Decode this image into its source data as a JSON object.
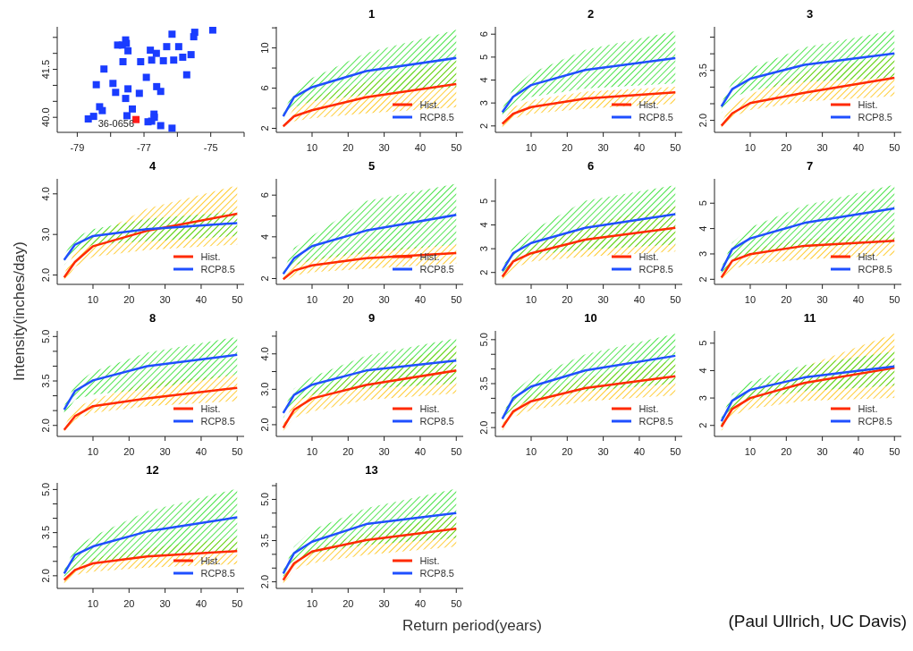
{
  "chart_data": [
    {
      "type": "scatter",
      "marker": "square",
      "xlim": [
        -79.6,
        -74.0
      ],
      "ylim": [
        39.53,
        42.83
      ],
      "xticks": [
        -79,
        {
          "value": -78,
          "label": null
        },
        -77,
        {
          "value": -76,
          "label": null
        },
        -75,
        {
          "value": -74,
          "label": null
        }
      ],
      "yticks": [
        {
          "value": 40,
          "label": "40.0"
        },
        {
          "value": 40.5,
          "label": null
        },
        {
          "value": 41,
          "label": null
        },
        41.5,
        {
          "value": 42,
          "label": null
        },
        {
          "value": 42.5,
          "label": null
        }
      ],
      "series": [
        {
          "color": "#1a3cff",
          "x": [
            -74.94,
            -75.48,
            -75.51,
            -76.16,
            -76.32,
            -75.96,
            -76.81,
            -76.63,
            -77.79,
            -77.65,
            -77.55,
            -77.53,
            -77.48,
            -75.84,
            -75.59,
            -76.11,
            -76.42,
            -76.77,
            -77.1,
            -77.63,
            -78.2,
            -75.72,
            -76.93,
            -78.43,
            -77.93,
            -77.85,
            -77.48,
            -77.55,
            -77.14,
            -76.62,
            -76.5,
            -78.33,
            -78.25,
            -77.35,
            -77.51,
            -76.7,
            -76.69,
            -76.77,
            -76.88,
            -76.5,
            -76.16,
            -78.67,
            -78.51
          ],
          "values": [
            42.73,
            42.66,
            42.52,
            42.6,
            42.21,
            42.21,
            42.1,
            42.0,
            42.26,
            42.26,
            42.42,
            42.31,
            42.08,
            41.88,
            41.96,
            41.79,
            41.77,
            41.79,
            41.74,
            41.74,
            41.51,
            41.33,
            41.25,
            41.02,
            41.06,
            40.78,
            40.89,
            40.59,
            40.75,
            40.96,
            40.81,
            40.33,
            40.21,
            40.26,
            40.05,
            40.1,
            40.0,
            39.88,
            39.86,
            39.74,
            39.66,
            39.95,
            40.03
          ]
        },
        {
          "color": "#ff1a1a",
          "x": [
            -77.24
          ],
          "values": [
            39.93
          ]
        }
      ],
      "annotations": [
        {
          "text": "36-0656",
          "x": -77.24,
          "y": 39.93
        }
      ]
    },
    {
      "type": "line",
      "title": "1",
      "x": [
        2,
        5,
        10,
        25,
        50
      ],
      "xlim": [
        0.08,
        51.92
      ],
      "xticks": [
        10,
        20,
        30,
        40,
        50
      ],
      "ylim": [
        1.6,
        12.1
      ],
      "yticks": [
        2,
        {
          "value": 4,
          "label": null
        },
        6,
        {
          "value": 8,
          "label": null
        },
        10,
        {
          "value": 12,
          "label": null
        }
      ],
      "legend": "bottom right",
      "series": [
        {
          "name": "Hist.",
          "color": "#ff2a00",
          "values": [
            2.2,
            3.2,
            3.8,
            5.1,
            6.4
          ],
          "lower": [
            2.0,
            2.7,
            3.0,
            3.5,
            4.1
          ],
          "upper": [
            2.4,
            4.0,
            5.1,
            6.6,
            8.7
          ]
        },
        {
          "name": "RCP8.5",
          "color": "#1f4fff",
          "values": [
            3.2,
            5.1,
            6.1,
            7.7,
            9.0
          ],
          "lower": [
            2.9,
            4.1,
            4.7,
            5.35,
            6.1
          ],
          "upper": [
            3.7,
            5.6,
            7.0,
            9.5,
            11.8
          ]
        }
      ]
    },
    {
      "type": "line",
      "title": "2",
      "x": [
        2,
        5,
        10,
        25,
        50
      ],
      "xlim": [
        0.08,
        51.92
      ],
      "xticks": [
        10,
        20,
        30,
        40,
        50
      ],
      "ylim": [
        1.72,
        6.32
      ],
      "yticks": [
        2,
        3,
        4,
        5,
        6
      ],
      "legend": "bottom right",
      "series": [
        {
          "name": "Hist.",
          "color": "#ff2a00",
          "values": [
            2.09,
            2.53,
            2.82,
            3.19,
            3.46
          ],
          "lower": [
            1.94,
            2.31,
            2.53,
            2.75,
            2.97
          ],
          "upper": [
            2.16,
            2.82,
            3.12,
            3.49,
            3.71
          ]
        },
        {
          "name": "RCP8.5",
          "color": "#1f4fff",
          "values": [
            2.6,
            3.27,
            3.78,
            4.44,
            4.96
          ],
          "lower": [
            2.38,
            2.97,
            3.26,
            3.63,
            3.85
          ],
          "upper": [
            2.75,
            3.63,
            4.3,
            5.32,
            6.13
          ]
        }
      ]
    },
    {
      "type": "line",
      "title": "3",
      "x": [
        2,
        5,
        10,
        25,
        50
      ],
      "xlim": [
        0.08,
        51.92
      ],
      "xticks": [
        10,
        20,
        30,
        40,
        50
      ],
      "ylim": [
        1.64,
        4.81
      ],
      "yticks": [
        {
          "value": 2,
          "label": "2.0"
        },
        {
          "value": 2.5,
          "label": null
        },
        {
          "value": 3,
          "label": null
        },
        3.5,
        {
          "value": 4,
          "label": null
        },
        {
          "value": 4.5,
          "label": null
        }
      ],
      "legend": "bottom right",
      "series": [
        {
          "name": "Hist.",
          "color": "#ff2a00",
          "values": [
            1.84,
            2.21,
            2.52,
            2.83,
            3.28
          ],
          "lower": [
            1.74,
            2.1,
            2.31,
            2.57,
            2.73
          ],
          "upper": [
            1.95,
            2.47,
            2.78,
            3.46,
            3.93
          ]
        },
        {
          "name": "RCP8.5",
          "color": "#1f4fff",
          "values": [
            2.42,
            2.94,
            3.25,
            3.67,
            4.01
          ],
          "lower": [
            2.21,
            2.68,
            2.89,
            3.15,
            3.29
          ],
          "upper": [
            2.52,
            3.15,
            3.56,
            4.19,
            4.71
          ]
        }
      ]
    },
    {
      "type": "line",
      "title": "4",
      "x": [
        2,
        5,
        10,
        25,
        50
      ],
      "xlim": [
        0.08,
        51.92
      ],
      "xticks": [
        10,
        20,
        30,
        40,
        50
      ],
      "ylim": [
        1.77,
        4.37
      ],
      "yticks": [
        {
          "value": 2,
          "label": "2.0"
        },
        {
          "value": 3,
          "label": "3.0"
        },
        {
          "value": 4,
          "label": "4.0"
        }
      ],
      "legend": "bottom right",
      "series": [
        {
          "name": "Hist.",
          "color": "#ff2a00",
          "values": [
            1.94,
            2.32,
            2.71,
            3.09,
            3.51
          ],
          "lower": [
            1.81,
            2.2,
            2.45,
            2.62,
            2.75
          ],
          "upper": [
            2.03,
            2.58,
            2.96,
            3.64,
            4.21
          ]
        },
        {
          "name": "RCP8.5",
          "color": "#1f4fff",
          "values": [
            2.37,
            2.75,
            2.96,
            3.13,
            3.28
          ],
          "lower": [
            2.24,
            2.58,
            2.75,
            2.83,
            2.96
          ],
          "upper": [
            2.49,
            2.92,
            3.13,
            3.39,
            3.56
          ]
        }
      ]
    },
    {
      "type": "line",
      "title": "5",
      "x": [
        2,
        5,
        10,
        25,
        50
      ],
      "xlim": [
        0.08,
        51.92
      ],
      "xticks": [
        10,
        20,
        30,
        40,
        50
      ],
      "ylim": [
        1.72,
        6.78
      ],
      "yticks": [
        2,
        {
          "value": 3,
          "label": null
        },
        4,
        {
          "value": 5,
          "label": null
        },
        6
      ],
      "legend": "bottom right",
      "series": [
        {
          "name": "Hist.",
          "color": "#ff2a00",
          "values": [
            1.97,
            2.38,
            2.63,
            2.97,
            3.22
          ],
          "lower": [
            1.83,
            2.13,
            2.3,
            2.47,
            2.72
          ],
          "upper": [
            2.05,
            2.72,
            2.97,
            3.38,
            3.63
          ]
        },
        {
          "name": "RCP8.5",
          "color": "#1f4fff",
          "values": [
            2.22,
            2.97,
            3.55,
            4.3,
            5.05
          ],
          "lower": [
            2.05,
            2.63,
            2.88,
            3.22,
            3.63
          ],
          "upper": [
            2.38,
            3.47,
            4.05,
            5.72,
            6.55
          ]
        }
      ]
    },
    {
      "type": "line",
      "title": "6",
      "x": [
        2,
        5,
        10,
        25,
        50
      ],
      "xlim": [
        0.08,
        51.92
      ],
      "xticks": [
        10,
        20,
        30,
        40,
        50
      ],
      "ylim": [
        1.5,
        5.94
      ],
      "yticks": [
        2,
        3,
        4,
        5
      ],
      "legend": "bottom right",
      "series": [
        {
          "name": "Hist.",
          "color": "#ff2a00",
          "values": [
            1.82,
            2.46,
            2.81,
            3.38,
            3.88
          ],
          "lower": [
            1.7,
            2.17,
            2.46,
            2.67,
            2.88
          ],
          "upper": [
            1.89,
            2.67,
            3.1,
            4.02,
            4.83
          ]
        },
        {
          "name": "RCP8.5",
          "color": "#1f4fff",
          "values": [
            2.07,
            2.81,
            3.24,
            3.88,
            4.45
          ],
          "lower": [
            1.96,
            2.46,
            2.74,
            2.96,
            3.17
          ],
          "upper": [
            2.17,
            3.1,
            3.74,
            5.02,
            5.68
          ]
        }
      ]
    },
    {
      "type": "line",
      "title": "7",
      "x": [
        2,
        5,
        10,
        25,
        50
      ],
      "xlim": [
        0.08,
        51.92
      ],
      "xticks": [
        10,
        20,
        30,
        40,
        50
      ],
      "ylim": [
        1.8,
        5.96
      ],
      "yticks": [
        2,
        3,
        4,
        5
      ],
      "legend": "bottom right",
      "series": [
        {
          "name": "Hist.",
          "color": "#ff2a00",
          "values": [
            2.07,
            2.73,
            2.99,
            3.32,
            3.52
          ],
          "lower": [
            2.0,
            2.4,
            2.59,
            2.79,
            2.95
          ],
          "upper": [
            2.2,
            2.92,
            3.19,
            3.58,
            3.78
          ]
        },
        {
          "name": "RCP8.5",
          "color": "#1f4fff",
          "values": [
            2.33,
            3.19,
            3.61,
            4.22,
            4.8
          ],
          "lower": [
            2.2,
            2.73,
            2.99,
            3.25,
            3.45
          ],
          "upper": [
            2.46,
            3.45,
            4.05,
            4.91,
            5.73
          ]
        }
      ]
    },
    {
      "type": "line",
      "title": "8",
      "ylabel": "Intensity(inches/day)",
      "x": [
        2,
        5,
        10,
        25,
        50
      ],
      "xlim": [
        0.08,
        51.92
      ],
      "xticks": [
        10,
        20,
        30,
        40,
        50
      ],
      "ylim": [
        1.63,
        5.19
      ],
      "yticks": [
        {
          "value": 2,
          "label": "2.0"
        },
        {
          "value": 2.5,
          "label": null
        },
        {
          "value": 3,
          "label": null
        },
        3.5,
        {
          "value": 4,
          "label": null
        },
        {
          "value": 4.5,
          "label": null
        },
        {
          "value": 5,
          "label": "5.0"
        }
      ],
      "legend": "bottom right",
      "series": [
        {
          "name": "Hist.",
          "color": "#ff2a00",
          "values": [
            1.85,
            2.31,
            2.65,
            2.91,
            3.27
          ],
          "lower": [
            1.8,
            2.19,
            2.42,
            2.65,
            2.82
          ],
          "upper": [
            1.97,
            2.59,
            2.87,
            3.44,
            3.72
          ]
        },
        {
          "name": "RCP8.5",
          "color": "#1f4fff",
          "values": [
            2.53,
            3.16,
            3.52,
            4.0,
            4.38
          ],
          "lower": [
            2.36,
            2.87,
            3.04,
            3.21,
            3.72
          ],
          "upper": [
            2.65,
            3.38,
            3.81,
            4.46,
            4.99
          ]
        }
      ]
    },
    {
      "type": "line",
      "title": "9",
      "x": [
        2,
        5,
        10,
        25,
        50
      ],
      "xlim": [
        0.08,
        51.92
      ],
      "xticks": [
        10,
        20,
        30,
        40,
        50
      ],
      "ylim": [
        1.67,
        4.65
      ],
      "yticks": [
        {
          "value": 2,
          "label": "2.0"
        },
        {
          "value": 2.5,
          "label": null
        },
        {
          "value": 3,
          "label": "3.0"
        },
        {
          "value": 3.5,
          "label": null
        },
        {
          "value": 4,
          "label": "4.0"
        },
        {
          "value": 4.5,
          "label": null
        }
      ],
      "legend": "bottom right",
      "series": [
        {
          "name": "Hist.",
          "color": "#ff2a00",
          "values": [
            1.91,
            2.42,
            2.74,
            3.12,
            3.53
          ],
          "lower": [
            1.83,
            2.19,
            2.37,
            2.7,
            2.88
          ],
          "upper": [
            2.0,
            2.65,
            2.93,
            3.53,
            4.23
          ]
        },
        {
          "name": "RCP8.5",
          "color": "#1f4fff",
          "values": [
            2.33,
            2.84,
            3.13,
            3.53,
            3.81
          ],
          "lower": [
            2.19,
            2.65,
            2.84,
            3.02,
            3.16
          ],
          "upper": [
            2.42,
            3.02,
            3.35,
            3.95,
            4.44
          ]
        }
      ]
    },
    {
      "type": "line",
      "title": "10",
      "x": [
        2,
        5,
        10,
        25,
        50
      ],
      "xlim": [
        0.08,
        51.92
      ],
      "xticks": [
        10,
        20,
        30,
        40,
        50
      ],
      "ylim": [
        1.7,
        5.3
      ],
      "yticks": [
        {
          "value": 2,
          "label": "2.0"
        },
        {
          "value": 2.5,
          "label": null
        },
        {
          "value": 3,
          "label": null
        },
        3.5,
        {
          "value": 4,
          "label": null
        },
        {
          "value": 4.5,
          "label": null
        },
        {
          "value": 5,
          "label": "5.0"
        }
      ],
      "legend": "bottom right",
      "series": [
        {
          "name": "Hist.",
          "color": "#ff2a00",
          "values": [
            2.0,
            2.55,
            2.9,
            3.35,
            3.75
          ],
          "lower": [
            1.9,
            2.35,
            2.6,
            2.9,
            3.1
          ],
          "upper": [
            2.1,
            2.75,
            3.1,
            3.7,
            4.3
          ]
        },
        {
          "name": "RCP8.5",
          "color": "#1f4fff",
          "values": [
            2.3,
            3.0,
            3.4,
            3.95,
            4.45
          ],
          "lower": [
            2.15,
            2.7,
            2.95,
            3.25,
            3.5
          ],
          "upper": [
            2.4,
            3.2,
            3.7,
            4.5,
            5.2
          ]
        }
      ]
    },
    {
      "type": "line",
      "title": "11",
      "x": [
        2,
        5,
        10,
        25,
        50
      ],
      "xlim": [
        0.08,
        51.92
      ],
      "xticks": [
        10,
        20,
        30,
        40,
        50
      ],
      "ylim": [
        1.6,
        5.45
      ],
      "yticks": [
        2,
        3,
        4,
        5
      ],
      "legend": "bottom right",
      "series": [
        {
          "name": "Hist.",
          "color": "#ff2a00",
          "values": [
            1.95,
            2.6,
            3.0,
            3.55,
            4.1
          ],
          "lower": [
            1.8,
            2.35,
            2.6,
            2.9,
            3.0
          ],
          "upper": [
            2.05,
            2.8,
            3.25,
            4.15,
            5.35
          ]
        },
        {
          "name": "RCP8.5",
          "color": "#1f4fff",
          "values": [
            2.15,
            2.9,
            3.3,
            3.75,
            4.15
          ],
          "lower": [
            2.0,
            2.65,
            2.95,
            3.25,
            3.45
          ],
          "upper": [
            2.3,
            3.15,
            3.6,
            4.2,
            4.7
          ]
        }
      ]
    },
    {
      "type": "line",
      "title": "12",
      "x": [
        2,
        5,
        10,
        25,
        50
      ],
      "xlim": [
        0.08,
        51.92
      ],
      "xticks": [
        10,
        20,
        30,
        40,
        50
      ],
      "ylim": [
        1.56,
        5.23
      ],
      "yticks": [
        {
          "value": 2,
          "label": "2.0"
        },
        {
          "value": 2.5,
          "label": null
        },
        {
          "value": 3,
          "label": null
        },
        3.5,
        {
          "value": 4,
          "label": null
        },
        {
          "value": 4.5,
          "label": null
        },
        {
          "value": 5,
          "label": "5.0"
        }
      ],
      "legend": "bottom right",
      "series": [
        {
          "name": "Hist.",
          "color": "#ff2a00",
          "values": [
            1.85,
            2.2,
            2.43,
            2.67,
            2.86
          ],
          "lower": [
            1.73,
            2.02,
            2.14,
            2.28,
            2.4
          ],
          "upper": [
            1.91,
            2.37,
            2.61,
            2.96,
            3.33
          ]
        },
        {
          "name": "RCP8.5",
          "color": "#1f4fff",
          "values": [
            2.08,
            2.72,
            3.02,
            3.54,
            4.03
          ],
          "lower": [
            1.96,
            2.32,
            2.49,
            2.67,
            2.84
          ],
          "upper": [
            2.2,
            2.96,
            3.37,
            4.24,
            5.03
          ]
        }
      ]
    },
    {
      "type": "line",
      "title": "13",
      "xlabel": "Return period(years)",
      "annotations": [
        "(Paul Ullrich, UC Davis)"
      ],
      "x": [
        2,
        5,
        10,
        25,
        50
      ],
      "xlim": [
        0.08,
        51.92
      ],
      "xticks": [
        10,
        20,
        30,
        40,
        50
      ],
      "ylim": [
        1.76,
        5.6
      ],
      "yticks": [
        {
          "value": 2,
          "label": "2.0"
        },
        {
          "value": 2.5,
          "label": null
        },
        {
          "value": 3,
          "label": null
        },
        3.5,
        {
          "value": 4,
          "label": null
        },
        {
          "value": 4.5,
          "label": null
        },
        {
          "value": 5,
          "label": "5.0"
        },
        {
          "value": 5.5,
          "label": null
        }
      ],
      "legend": "bottom right",
      "series": [
        {
          "name": "Hist.",
          "color": "#ff2a00",
          "values": [
            2.06,
            2.67,
            3.1,
            3.52,
            3.93
          ],
          "lower": [
            1.94,
            2.43,
            2.67,
            2.98,
            3.28
          ],
          "upper": [
            2.18,
            2.85,
            3.22,
            3.77,
            4.44
          ]
        },
        {
          "name": "RCP8.5",
          "color": "#1f4fff",
          "values": [
            2.3,
            3.04,
            3.46,
            4.1,
            4.5
          ],
          "lower": [
            2.18,
            2.73,
            3.04,
            3.34,
            3.59
          ],
          "upper": [
            2.43,
            3.28,
            3.89,
            4.68,
            5.39
          ]
        }
      ]
    }
  ]
}
